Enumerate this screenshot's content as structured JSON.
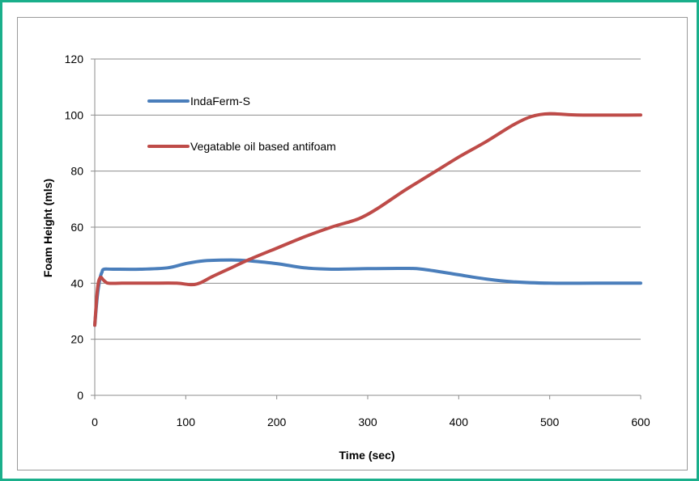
{
  "chart_data": {
    "type": "line",
    "title": "",
    "xlabel": "Time (sec)",
    "ylabel": "Foam Height (mls)",
    "xlim": [
      0,
      600
    ],
    "ylim": [
      0,
      120
    ],
    "xticks": [
      0,
      100,
      200,
      300,
      400,
      500,
      600
    ],
    "yticks": [
      0,
      20,
      40,
      60,
      80,
      100,
      120
    ],
    "grid": "horizontal",
    "legend_position": "top-left",
    "series": [
      {
        "name": "IndaFerm-S",
        "color": "#4a7ebb",
        "points": [
          [
            0,
            25
          ],
          [
            3,
            36
          ],
          [
            6,
            42
          ],
          [
            8,
            44
          ],
          [
            10,
            45
          ],
          [
            20,
            45
          ],
          [
            50,
            45
          ],
          [
            80,
            45.5
          ],
          [
            100,
            47
          ],
          [
            120,
            48
          ],
          [
            150,
            48.3
          ],
          [
            170,
            48
          ],
          [
            200,
            47
          ],
          [
            230,
            45.5
          ],
          [
            260,
            45
          ],
          [
            300,
            45.2
          ],
          [
            340,
            45.3
          ],
          [
            360,
            45
          ],
          [
            400,
            43
          ],
          [
            430,
            41.5
          ],
          [
            460,
            40.5
          ],
          [
            500,
            40
          ],
          [
            550,
            40
          ],
          [
            600,
            40
          ]
        ]
      },
      {
        "name": "Vegatable oil based antifoam",
        "color": "#be4b48",
        "points": [
          [
            0,
            25
          ],
          [
            3,
            38
          ],
          [
            6,
            42
          ],
          [
            10,
            41
          ],
          [
            15,
            40
          ],
          [
            30,
            40
          ],
          [
            60,
            40
          ],
          [
            90,
            40
          ],
          [
            105,
            39.5
          ],
          [
            115,
            40
          ],
          [
            130,
            42.5
          ],
          [
            150,
            45.5
          ],
          [
            170,
            48.5
          ],
          [
            200,
            52.5
          ],
          [
            230,
            56.5
          ],
          [
            260,
            60
          ],
          [
            290,
            63
          ],
          [
            310,
            66.5
          ],
          [
            340,
            73
          ],
          [
            370,
            79
          ],
          [
            400,
            85
          ],
          [
            430,
            90.5
          ],
          [
            460,
            96.5
          ],
          [
            480,
            99.5
          ],
          [
            500,
            100.5
          ],
          [
            530,
            100
          ],
          [
            600,
            100
          ]
        ]
      }
    ]
  }
}
